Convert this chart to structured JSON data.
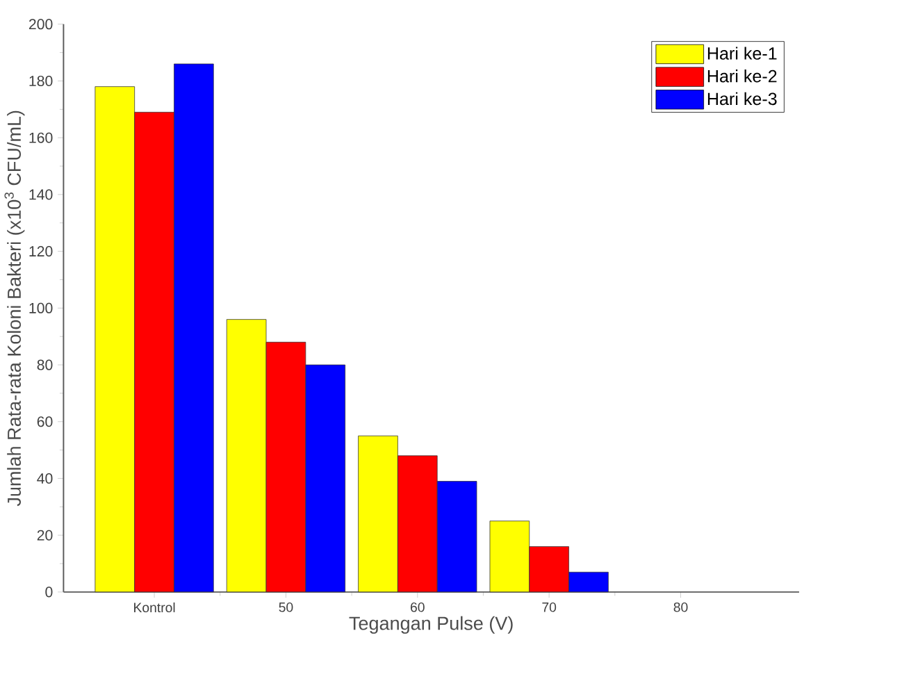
{
  "chart_data": {
    "type": "bar",
    "xlabel": "Tegangan Pulse (V)",
    "ylabel": "Jumlah Rata-rata Koloni Bakteri (x10$^{3}$ CFU/mL)",
    "categories": [
      "Kontrol",
      "50",
      "60",
      "70",
      "80"
    ],
    "series": [
      {
        "name": "Hari ke-1",
        "color": "#ffff00",
        "values": [
          178,
          96,
          55,
          25,
          null
        ]
      },
      {
        "name": "Hari ke-2",
        "color": "#ff0000",
        "values": [
          169,
          88,
          48,
          16,
          null
        ]
      },
      {
        "name": "Hari ke-3",
        "color": "#0000ff",
        "values": [
          186,
          80,
          39,
          7,
          null
        ]
      }
    ],
    "ylim": [
      0,
      200
    ],
    "yticks": [
      0,
      20,
      40,
      60,
      80,
      100,
      120,
      140,
      160,
      180,
      200
    ],
    "grid": false,
    "legend": "top right"
  }
}
